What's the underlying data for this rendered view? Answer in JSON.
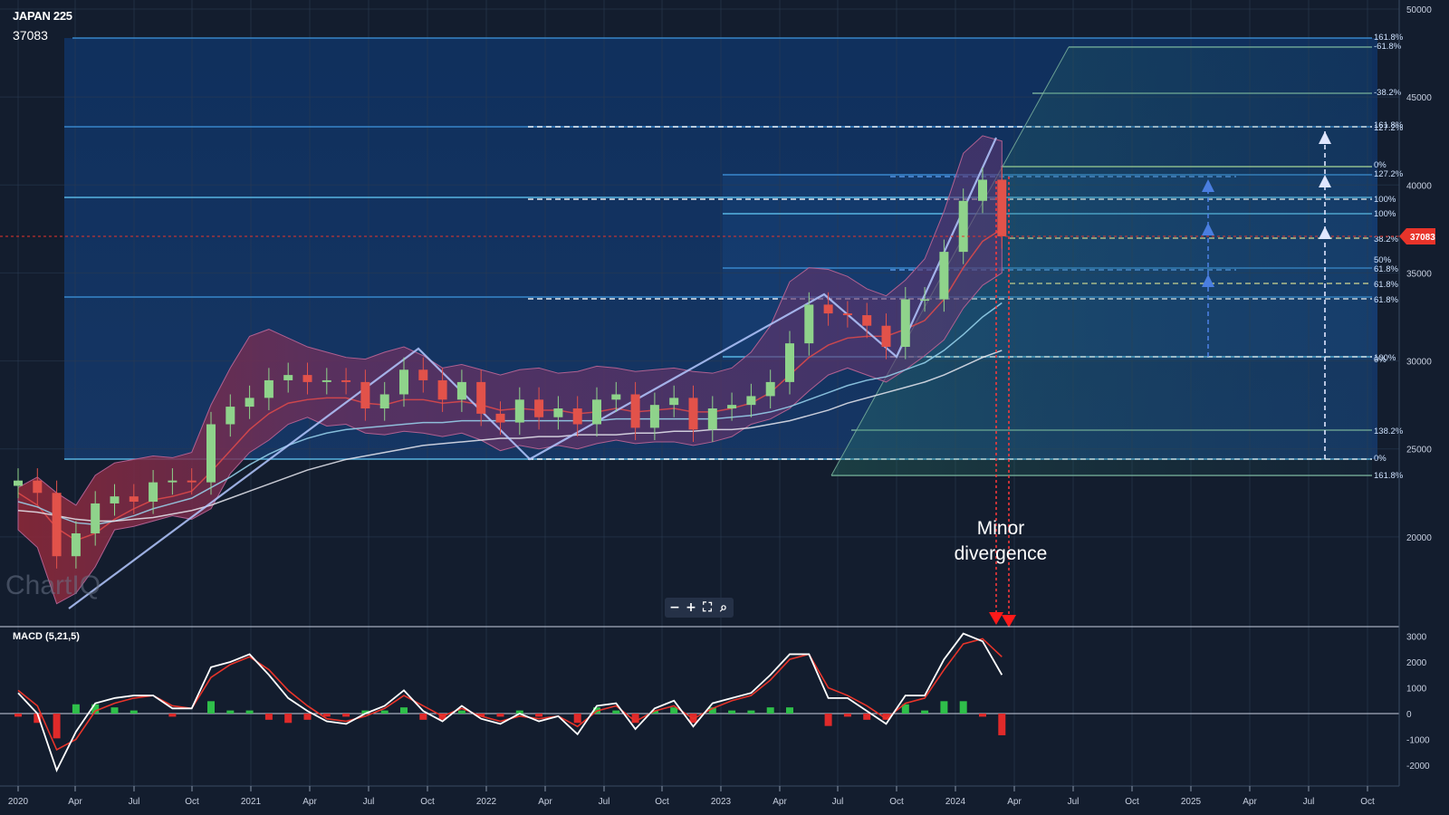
{
  "header": {
    "ticker": "JAPAN 225",
    "price": "37083"
  },
  "watermark": "ChartIQ",
  "annotation": {
    "line1": "Minor",
    "line2": "divergence"
  },
  "macd_label": "MACD (5,21,5)",
  "zoom": {
    "minus": "−",
    "plus": "+",
    "fit": "⛶",
    "search": "⌕"
  },
  "colors": {
    "background": "#131d2e",
    "price_tag": "#e8342a",
    "candle_up": "#8fd38b",
    "candle_down": "#e2524a",
    "macd_line": "#ffffff",
    "signal_line": "#e8342a",
    "hist_up": "#2fbf4a",
    "hist_down": "#e02a2a"
  },
  "chart_data": [
    {
      "type": "candlestick",
      "title": "JAPAN 225",
      "last_price": 37083,
      "ylim": [
        15000,
        50000
      ],
      "y_ticks": [
        "20000",
        "25000",
        "30000",
        "35000",
        "40000",
        "45000",
        "50000"
      ],
      "x_ticks": [
        "2020",
        "Apr",
        "Jul",
        "Oct",
        "2021",
        "Apr",
        "Jul",
        "Oct",
        "2022",
        "Apr",
        "Jul",
        "Oct",
        "2023",
        "Apr",
        "Jul",
        "Oct",
        "2024",
        "Apr",
        "Jul",
        "Oct",
        "2025",
        "Apr",
        "Jul",
        "Oct"
      ],
      "series": [
        {
          "name": "close",
          "x": [
            "2020-01",
            "2020-02",
            "2020-03",
            "2020-04",
            "2020-05",
            "2020-06",
            "2020-07",
            "2020-08",
            "2020-09",
            "2020-10",
            "2020-11",
            "2020-12",
            "2021-01",
            "2021-02",
            "2021-03",
            "2021-04",
            "2021-05",
            "2021-06",
            "2021-07",
            "2021-08",
            "2021-09",
            "2021-10",
            "2021-11",
            "2021-12",
            "2022-01",
            "2022-02",
            "2022-03",
            "2022-04",
            "2022-05",
            "2022-06",
            "2022-07",
            "2022-08",
            "2022-09",
            "2022-10",
            "2022-11",
            "2022-12",
            "2023-01",
            "2023-02",
            "2023-03",
            "2023-04",
            "2023-05",
            "2023-06",
            "2023-07",
            "2023-08",
            "2023-09",
            "2023-10",
            "2023-11",
            "2023-12",
            "2024-01",
            "2024-02",
            "2024-03",
            "2024-04"
          ],
          "values": [
            23200,
            22500,
            18900,
            20200,
            21900,
            22300,
            22000,
            23100,
            23200,
            23100,
            26400,
            27400,
            27900,
            28900,
            29200,
            28800,
            28900,
            28800,
            27300,
            28100,
            29500,
            28900,
            27800,
            28800,
            27000,
            26500,
            27800,
            26800,
            27300,
            26400,
            27800,
            28100,
            26200,
            27500,
            27900,
            26100,
            27300,
            27500,
            28000,
            28800,
            31000,
            33200,
            32700,
            32600,
            32000,
            30800,
            33500,
            33500,
            36200,
            39100,
            40300,
            37083
          ]
        }
      ],
      "fibonacci_levels": [
        "161.8%",
        "-61.8%",
        "-38.2%",
        "161.8%",
        "127.2%",
        "0%",
        "127.2%",
        "100%",
        "100%",
        "38.2%",
        "50%",
        "61.8%",
        "61.8%",
        "61.8%",
        "100%",
        "0%",
        "138.2%",
        "0%",
        "161.8%"
      ],
      "indicators": [
        "Bollinger Bands",
        "Moving averages"
      ]
    },
    {
      "type": "line",
      "title": "MACD (5,21,5)",
      "ylim": [
        -2600,
        3300
      ],
      "y_ticks": [
        "3000",
        "2000",
        "1000",
        "0",
        "-1000",
        "-2000"
      ],
      "series": [
        {
          "name": "MACD",
          "values": [
            800,
            0,
            -2200,
            -700,
            400,
            600,
            700,
            700,
            200,
            200,
            1800,
            2000,
            2300,
            1500,
            600,
            100,
            -300,
            -400,
            0,
            300,
            900,
            100,
            -300,
            300,
            -200,
            -400,
            0,
            -300,
            -100,
            -800,
            300,
            400,
            -600,
            200,
            500,
            -500,
            400,
            600,
            800,
            1500,
            2300,
            2300,
            600,
            600,
            100,
            -400,
            700,
            700,
            2100,
            3100,
            2800,
            1500
          ]
        },
        {
          "name": "Signal",
          "values": [
            900,
            300,
            -1400,
            -1000,
            100,
            400,
            600,
            700,
            300,
            200,
            1400,
            1900,
            2200,
            1700,
            900,
            300,
            -200,
            -300,
            -100,
            200,
            700,
            300,
            -100,
            200,
            -100,
            -300,
            -100,
            -200,
            -100,
            -500,
            100,
            300,
            -300,
            100,
            300,
            -200,
            200,
            500,
            700,
            1300,
            2100,
            2300,
            1000,
            700,
            300,
            -200,
            400,
            600,
            1700,
            2700,
            2900,
            2200
          ]
        }
      ]
    }
  ]
}
